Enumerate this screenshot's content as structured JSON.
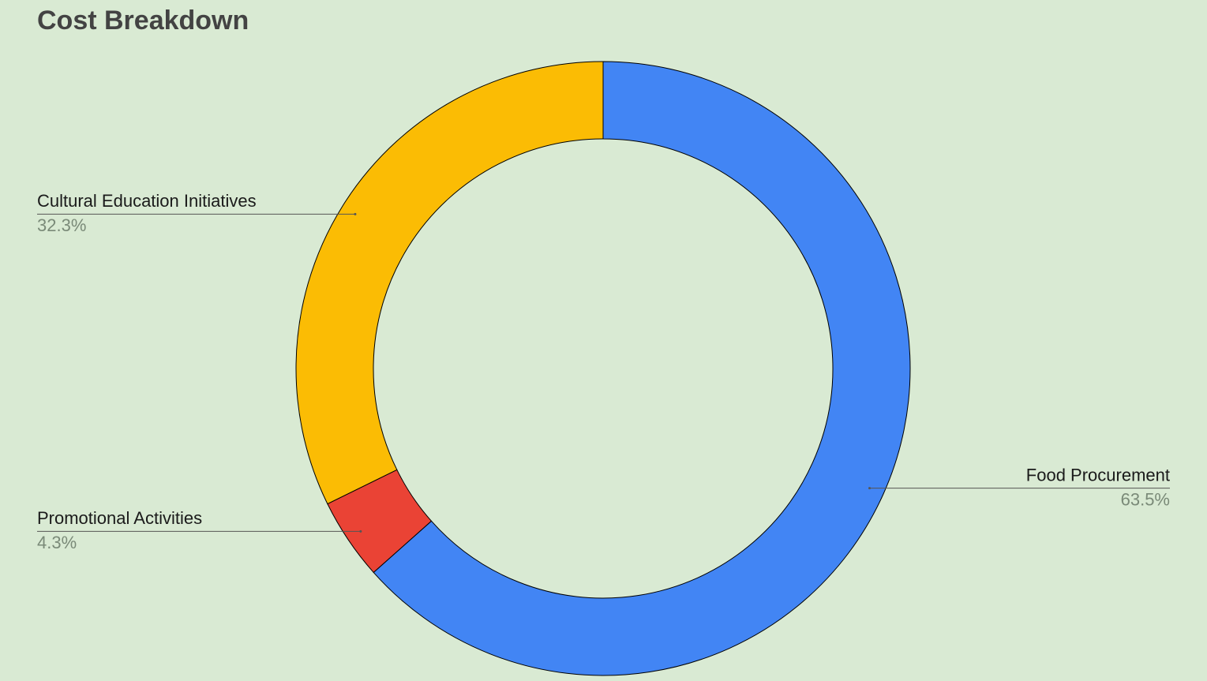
{
  "chart_data": {
    "type": "donut",
    "title": "Cost Breakdown",
    "categories": [
      "Food Procurement",
      "Promotional Activities",
      "Cultural Education Initiatives"
    ],
    "values": [
      63.5,
      4.3,
      32.3
    ],
    "value_labels": [
      "63.5%",
      "4.3%",
      "32.3%"
    ],
    "colors": [
      "#4285f4",
      "#ea4335",
      "#fbbc04"
    ]
  }
}
